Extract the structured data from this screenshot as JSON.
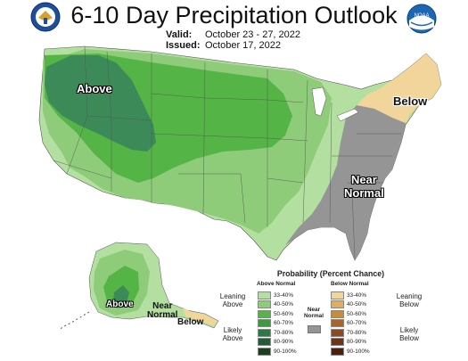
{
  "header": {
    "title": "6-10 Day Precipitation Outlook",
    "valid_key": "Valid:",
    "valid_value": "October 23 - 27, 2022",
    "issued_key": "Issued:",
    "issued_value": "October 17, 2022"
  },
  "logos": {
    "left": "dept-of-commerce-seal",
    "right_text": "NOAA"
  },
  "map_labels": {
    "above_main": "Above",
    "below_main": "Below",
    "near_normal_main": [
      "Near",
      "Normal"
    ],
    "alaska_above": "Above",
    "alaska_near_normal": [
      "Near",
      "Normal"
    ],
    "alaska_below": "Below"
  },
  "legend": {
    "title": "Probability (Percent Chance)",
    "above_header": "Above Normal",
    "below_header": "Below Normal",
    "near_header": [
      "Near",
      "Normal"
    ],
    "above": [
      {
        "label": "33-40%",
        "color": "#b3dfa0"
      },
      {
        "label": "40-50%",
        "color": "#8fcc7a"
      },
      {
        "label": "50-60%",
        "color": "#54b446"
      },
      {
        "label": "60-70%",
        "color": "#3b9a3e"
      },
      {
        "label": "70-80%",
        "color": "#2b7a44"
      },
      {
        "label": "80-90%",
        "color": "#245c39"
      },
      {
        "label": "90-100%",
        "color": "#1d3f1d"
      }
    ],
    "below": [
      {
        "label": "33-40%",
        "color": "#f2d59b"
      },
      {
        "label": "40-50%",
        "color": "#dfae63"
      },
      {
        "label": "50-60%",
        "color": "#c98a3a"
      },
      {
        "label": "60-70%",
        "color": "#a8652b"
      },
      {
        "label": "70-80%",
        "color": "#8a4a22"
      },
      {
        "label": "80-90%",
        "color": "#6e3318"
      },
      {
        "label": "90-100%",
        "color": "#4c1f10"
      }
    ],
    "near_color": "#959595",
    "leaning_above": [
      "Leaning",
      "Above"
    ],
    "likely_above": [
      "Likely",
      "Above"
    ],
    "leaning_below": [
      "Leaning",
      "Below"
    ],
    "likely_below": [
      "Likely",
      "Below"
    ]
  }
}
